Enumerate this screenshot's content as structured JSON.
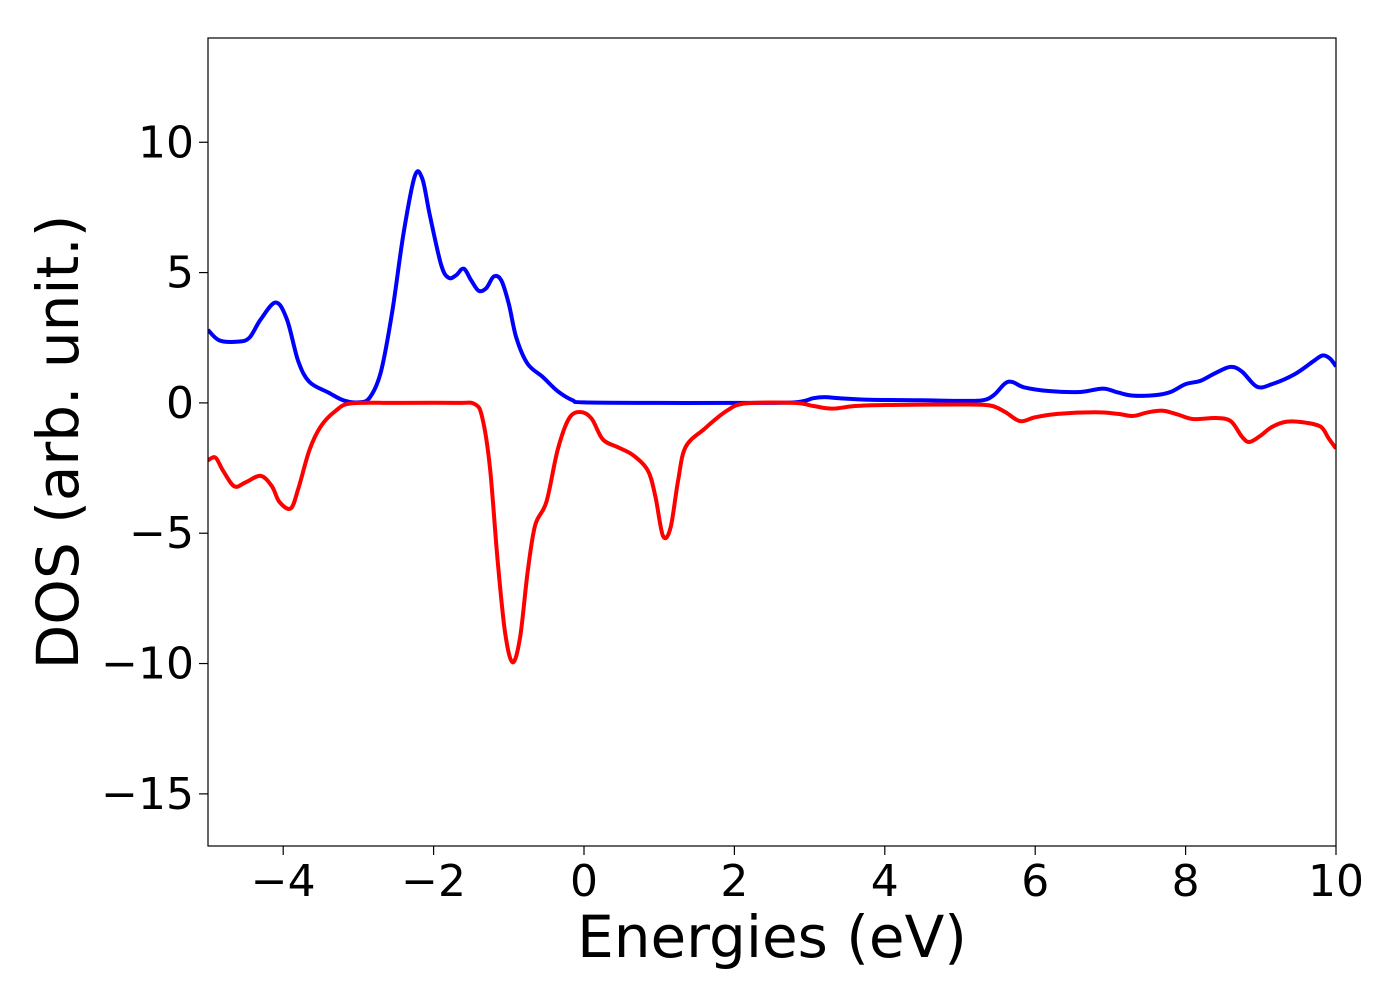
{
  "chart_data": {
    "type": "line",
    "title": "",
    "xlabel": "Energies (eV)",
    "ylabel": "DOS (arb. unit.)",
    "xlim": [
      -5,
      10
    ],
    "ylim": [
      -17,
      14
    ],
    "grid": false,
    "x_ticks": [
      -4,
      -2,
      0,
      2,
      4,
      6,
      8,
      10
    ],
    "x_tick_labels": [
      "−4",
      "−2",
      "0",
      "2",
      "4",
      "6",
      "8",
      "10"
    ],
    "y_ticks": [
      -15,
      -10,
      -5,
      0,
      5,
      10
    ],
    "y_tick_labels": [
      "−15",
      "−10",
      "−5",
      "0",
      "5",
      "10"
    ],
    "series": [
      {
        "color": "#0000ff",
        "points": [
          [
            -5.0,
            2.8
          ],
          [
            -4.85,
            2.4
          ],
          [
            -4.6,
            2.35
          ],
          [
            -4.45,
            2.5
          ],
          [
            -4.3,
            3.2
          ],
          [
            -4.1,
            3.85
          ],
          [
            -3.95,
            3.2
          ],
          [
            -3.8,
            1.6
          ],
          [
            -3.65,
            0.8
          ],
          [
            -3.4,
            0.4
          ],
          [
            -3.2,
            0.1
          ],
          [
            -3.0,
            0.02
          ],
          [
            -2.85,
            0.2
          ],
          [
            -2.7,
            1.2
          ],
          [
            -2.55,
            3.5
          ],
          [
            -2.4,
            6.5
          ],
          [
            -2.25,
            8.7
          ],
          [
            -2.15,
            8.6
          ],
          [
            -2.05,
            7.2
          ],
          [
            -1.9,
            5.3
          ],
          [
            -1.8,
            4.8
          ],
          [
            -1.7,
            4.9
          ],
          [
            -1.6,
            5.15
          ],
          [
            -1.5,
            4.7
          ],
          [
            -1.4,
            4.3
          ],
          [
            -1.3,
            4.4
          ],
          [
            -1.2,
            4.85
          ],
          [
            -1.1,
            4.7
          ],
          [
            -1.0,
            3.8
          ],
          [
            -0.9,
            2.5
          ],
          [
            -0.75,
            1.5
          ],
          [
            -0.55,
            1.0
          ],
          [
            -0.35,
            0.45
          ],
          [
            -0.15,
            0.1
          ],
          [
            0.0,
            0.02
          ],
          [
            1.0,
            0.0
          ],
          [
            2.0,
            0.0
          ],
          [
            2.8,
            0.02
          ],
          [
            3.05,
            0.18
          ],
          [
            3.2,
            0.22
          ],
          [
            3.4,
            0.18
          ],
          [
            3.8,
            0.12
          ],
          [
            4.5,
            0.1
          ],
          [
            5.0,
            0.08
          ],
          [
            5.3,
            0.1
          ],
          [
            5.45,
            0.3
          ],
          [
            5.6,
            0.75
          ],
          [
            5.7,
            0.8
          ],
          [
            5.85,
            0.6
          ],
          [
            6.2,
            0.45
          ],
          [
            6.6,
            0.42
          ],
          [
            6.9,
            0.55
          ],
          [
            7.1,
            0.4
          ],
          [
            7.3,
            0.28
          ],
          [
            7.6,
            0.3
          ],
          [
            7.8,
            0.42
          ],
          [
            8.0,
            0.72
          ],
          [
            8.2,
            0.85
          ],
          [
            8.4,
            1.15
          ],
          [
            8.6,
            1.38
          ],
          [
            8.75,
            1.2
          ],
          [
            8.95,
            0.62
          ],
          [
            9.15,
            0.72
          ],
          [
            9.45,
            1.1
          ],
          [
            9.7,
            1.6
          ],
          [
            9.82,
            1.82
          ],
          [
            9.92,
            1.7
          ],
          [
            10.0,
            1.4
          ]
        ]
      },
      {
        "color": "#ff0000",
        "points": [
          [
            -5.0,
            -2.2
          ],
          [
            -4.9,
            -2.1
          ],
          [
            -4.8,
            -2.6
          ],
          [
            -4.65,
            -3.2
          ],
          [
            -4.5,
            -3.05
          ],
          [
            -4.3,
            -2.8
          ],
          [
            -4.15,
            -3.2
          ],
          [
            -4.05,
            -3.8
          ],
          [
            -3.9,
            -4.05
          ],
          [
            -3.8,
            -3.3
          ],
          [
            -3.65,
            -1.8
          ],
          [
            -3.5,
            -0.9
          ],
          [
            -3.3,
            -0.3
          ],
          [
            -3.1,
            -0.02
          ],
          [
            -2.5,
            0.0
          ],
          [
            -1.7,
            0.0
          ],
          [
            -1.45,
            -0.05
          ],
          [
            -1.35,
            -0.6
          ],
          [
            -1.25,
            -2.5
          ],
          [
            -1.15,
            -6.0
          ],
          [
            -1.05,
            -8.8
          ],
          [
            -0.95,
            -9.95
          ],
          [
            -0.85,
            -9.0
          ],
          [
            -0.75,
            -6.5
          ],
          [
            -0.65,
            -4.7
          ],
          [
            -0.5,
            -3.8
          ],
          [
            -0.35,
            -1.8
          ],
          [
            -0.2,
            -0.6
          ],
          [
            -0.05,
            -0.35
          ],
          [
            0.1,
            -0.6
          ],
          [
            0.25,
            -1.4
          ],
          [
            0.45,
            -1.7
          ],
          [
            0.65,
            -2.0
          ],
          [
            0.85,
            -2.6
          ],
          [
            0.95,
            -3.6
          ],
          [
            1.05,
            -5.1
          ],
          [
            1.15,
            -4.8
          ],
          [
            1.25,
            -3.0
          ],
          [
            1.35,
            -1.7
          ],
          [
            1.6,
            -1.0
          ],
          [
            1.9,
            -0.3
          ],
          [
            2.15,
            -0.02
          ],
          [
            2.8,
            0.0
          ],
          [
            3.05,
            -0.12
          ],
          [
            3.3,
            -0.22
          ],
          [
            3.6,
            -0.12
          ],
          [
            4.0,
            -0.08
          ],
          [
            5.0,
            -0.06
          ],
          [
            5.4,
            -0.1
          ],
          [
            5.6,
            -0.35
          ],
          [
            5.8,
            -0.7
          ],
          [
            6.0,
            -0.55
          ],
          [
            6.3,
            -0.42
          ],
          [
            6.8,
            -0.36
          ],
          [
            7.1,
            -0.42
          ],
          [
            7.3,
            -0.5
          ],
          [
            7.5,
            -0.36
          ],
          [
            7.7,
            -0.3
          ],
          [
            7.9,
            -0.45
          ],
          [
            8.1,
            -0.62
          ],
          [
            8.4,
            -0.58
          ],
          [
            8.6,
            -0.7
          ],
          [
            8.75,
            -1.3
          ],
          [
            8.85,
            -1.5
          ],
          [
            9.0,
            -1.25
          ],
          [
            9.15,
            -0.92
          ],
          [
            9.35,
            -0.72
          ],
          [
            9.6,
            -0.76
          ],
          [
            9.8,
            -0.92
          ],
          [
            9.9,
            -1.35
          ],
          [
            10.0,
            -1.75
          ]
        ]
      }
    ]
  }
}
